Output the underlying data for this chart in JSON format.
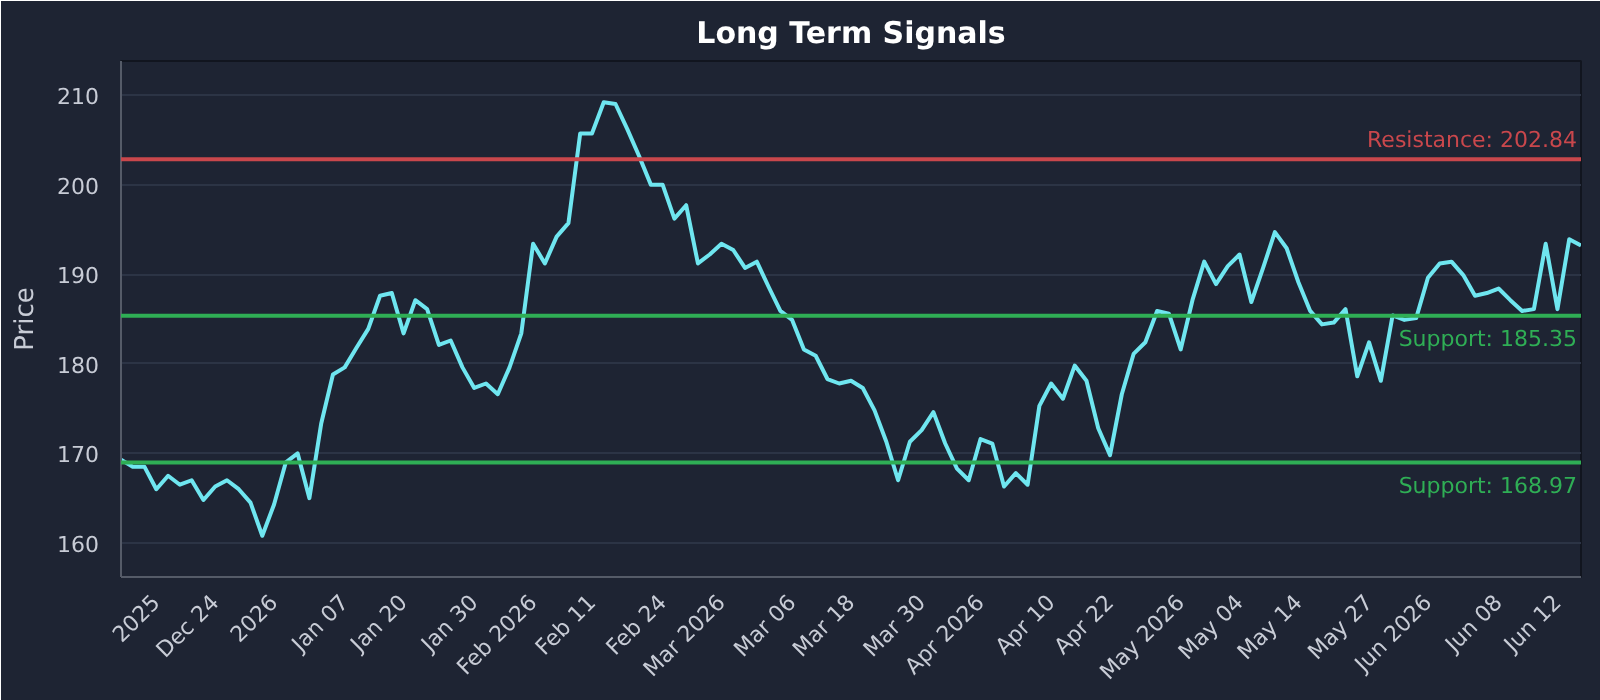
{
  "chart_data": {
    "type": "line",
    "title": "Long Term Signals",
    "ylabel": "Price",
    "categories": [
      null,
      null,
      null,
      "2025",
      null,
      null,
      null,
      null,
      "Dec 24",
      null,
      null,
      null,
      null,
      "2026",
      null,
      null,
      null,
      null,
      null,
      "Jan 07",
      null,
      null,
      null,
      null,
      "Jan 20",
      null,
      null,
      null,
      null,
      null,
      "Jan 30",
      null,
      null,
      null,
      null,
      "Feb 2026",
      null,
      null,
      null,
      null,
      "Feb 11",
      null,
      null,
      null,
      null,
      null,
      "Feb 24",
      null,
      null,
      null,
      null,
      "Mar 2026",
      null,
      null,
      null,
      null,
      null,
      "Mar 06",
      null,
      null,
      null,
      null,
      "Mar 18",
      null,
      null,
      null,
      null,
      null,
      "Mar 30",
      null,
      null,
      null,
      null,
      "Apr 2026",
      null,
      null,
      null,
      null,
      null,
      "Apr 10",
      null,
      null,
      null,
      null,
      "Apr 22",
      null,
      null,
      null,
      null,
      null,
      "May 2026",
      null,
      null,
      null,
      null,
      "May 04",
      null,
      null,
      null,
      null,
      "May 14",
      null,
      null,
      null,
      null,
      null,
      "May 27",
      null,
      null,
      null,
      null,
      "Jun 2026",
      null,
      null,
      null,
      null,
      null,
      "Jun 08",
      null,
      null,
      null,
      null,
      "Jun 12",
      null,
      null
    ],
    "series": [
      {
        "color": "#6fe6f0",
        "values": [
          169.3,
          168.5,
          168.5,
          166.0,
          167.5,
          166.5,
          167.0,
          164.8,
          166.3,
          167.0,
          166.0,
          164.5,
          160.8,
          164.3,
          169.0,
          170.0,
          165.0,
          173.3,
          178.8,
          179.6,
          181.8,
          183.9,
          187.6,
          187.9,
          183.4,
          187.1,
          186.1,
          182.1,
          182.6,
          179.6,
          177.3,
          177.8,
          176.6,
          179.6,
          183.4,
          193.4,
          191.2,
          194.2,
          195.7,
          205.7,
          205.7,
          209.2,
          209.0,
          206.2,
          203.2,
          200.0,
          200.0,
          196.2,
          197.7,
          191.2,
          192.2,
          193.4,
          192.7,
          190.7,
          191.4,
          188.6,
          185.9,
          184.9,
          181.6,
          180.9,
          178.3,
          177.8,
          178.1,
          177.3,
          174.8,
          171.3,
          167.0,
          171.3,
          172.6,
          174.6,
          171.1,
          168.3,
          167.0,
          171.6,
          171.1,
          166.3,
          167.8,
          166.5,
          175.3,
          177.8,
          176.1,
          179.8,
          178.1,
          172.8,
          169.8,
          176.6,
          181.1,
          182.4,
          185.9,
          185.6,
          181.6,
          187.1,
          191.4,
          188.9,
          190.9,
          192.2,
          186.9,
          190.7,
          194.7,
          192.9,
          189.1,
          185.9,
          184.4,
          184.6,
          186.1,
          178.6,
          182.4,
          178.1,
          185.4,
          184.9,
          185.1,
          189.6,
          191.2,
          191.4,
          189.9,
          187.6,
          187.9,
          188.4,
          187.1,
          185.9,
          186.1,
          193.4,
          186.1,
          193.9,
          193.2
        ]
      }
    ],
    "ylim": [
      156.2,
      213.8
    ],
    "yticks": [
      160,
      170,
      180,
      190,
      200,
      210
    ],
    "grid": "y",
    "marker": "none",
    "line_style": "solid",
    "ref_lines": [
      {
        "axis": "y",
        "value": 202.84,
        "label": "Resistance: 202.84",
        "color": "#c9474c"
      },
      {
        "axis": "y",
        "value": 185.35,
        "label": "Support: 185.35",
        "color": "#2fae55"
      },
      {
        "axis": "y",
        "value": 168.97,
        "label": "Support: 168.97",
        "color": "#2fae55"
      }
    ]
  }
}
